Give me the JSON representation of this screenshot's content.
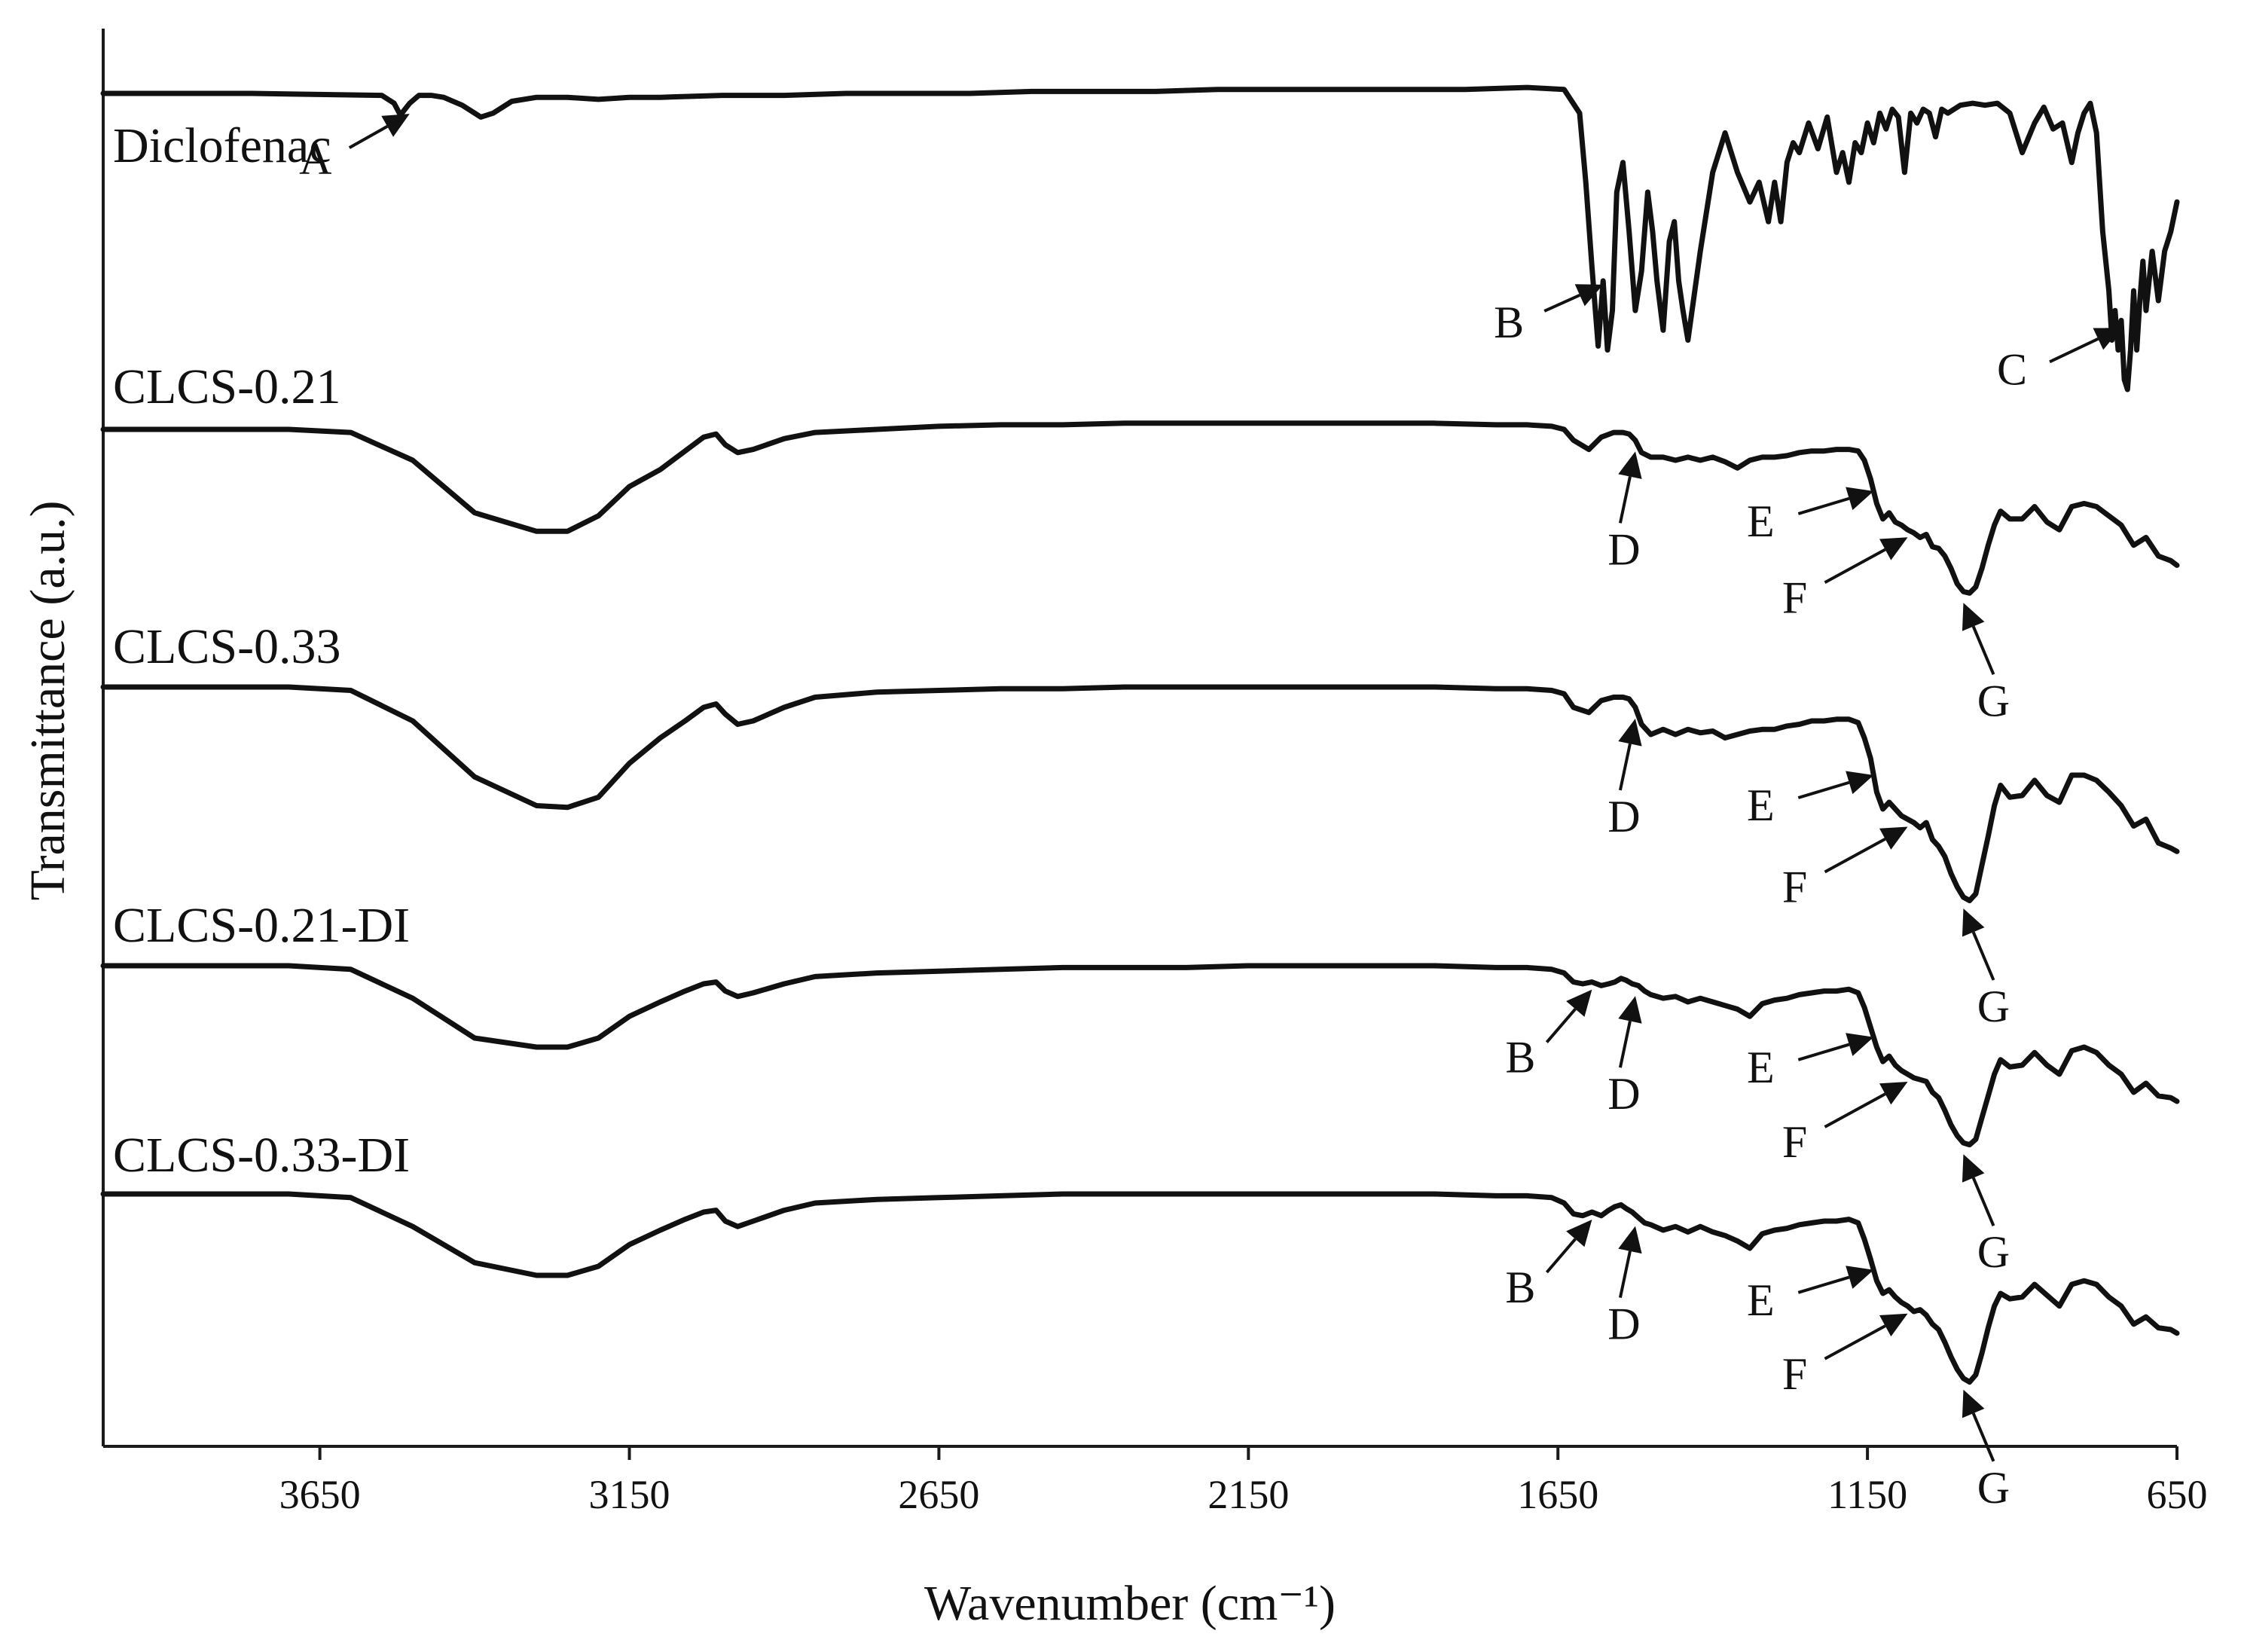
{
  "chart_data": {
    "type": "line",
    "xlabel": "Wavenumber (cm⁻¹)",
    "ylabel": "Transmittance (a.u.)",
    "xlim": [
      4000,
      650
    ],
    "x_reversed": true,
    "xticks": [
      3650,
      3150,
      2650,
      2150,
      1650,
      1150,
      650
    ],
    "y_ticks_shown": false,
    "legend": "labels above each trace",
    "series": [
      {
        "name": "Diclofenac",
        "x": [
          4000,
          3760,
          3550,
          3530,
          3520,
          3505,
          3490,
          3470,
          3450,
          3420,
          3390,
          3370,
          3340,
          3300,
          3250,
          3200,
          3150,
          3100,
          3000,
          2900,
          2800,
          2700,
          2600,
          2500,
          2400,
          2300,
          2200,
          2100,
          2000,
          1900,
          1800,
          1700,
          1640,
          1615,
          1605,
          1595,
          1585,
          1577,
          1570,
          1562,
          1555,
          1545,
          1535,
          1525,
          1515,
          1505,
          1497,
          1490,
          1480,
          1470,
          1462,
          1455,
          1448,
          1440,
          1420,
          1400,
          1380,
          1360,
          1340,
          1325,
          1310,
          1300,
          1290,
          1280,
          1270,
          1260,
          1245,
          1230,
          1215,
          1200,
          1190,
          1180,
          1170,
          1160,
          1150,
          1140,
          1130,
          1120,
          1110,
          1100,
          1090,
          1080,
          1070,
          1060,
          1050,
          1040,
          1030,
          1020,
          1000,
          980,
          960,
          940,
          920,
          900,
          880,
          865,
          850,
          835,
          820,
          810,
          800,
          790,
          780,
          770,
          760,
          755,
          750,
          745,
          740,
          735,
          730,
          725,
          720,
          715,
          710,
          705,
          700,
          695,
          690,
          680,
          670,
          660,
          650
        ],
        "y": [
          1.5,
          1.5,
          1.49,
          1.45,
          1.39,
          1.45,
          1.49,
          1.49,
          1.48,
          1.44,
          1.38,
          1.4,
          1.46,
          1.48,
          1.48,
          1.47,
          1.48,
          1.48,
          1.49,
          1.49,
          1.5,
          1.5,
          1.5,
          1.51,
          1.51,
          1.51,
          1.52,
          1.52,
          1.52,
          1.52,
          1.52,
          1.53,
          1.52,
          1.4,
          1.05,
          0.62,
          0.22,
          0.55,
          0.2,
          0.4,
          1.0,
          1.15,
          0.8,
          0.4,
          0.6,
          1.0,
          0.8,
          0.55,
          0.3,
          0.75,
          0.85,
          0.55,
          0.4,
          0.25,
          0.7,
          1.1,
          1.3,
          1.1,
          0.95,
          1.05,
          0.85,
          1.05,
          0.85,
          1.15,
          1.25,
          1.2,
          1.35,
          1.22,
          1.38,
          1.1,
          1.2,
          1.05,
          1.25,
          1.2,
          1.35,
          1.25,
          1.4,
          1.32,
          1.42,
          1.38,
          1.1,
          1.4,
          1.35,
          1.42,
          1.4,
          1.28,
          1.42,
          1.4,
          1.44,
          1.45,
          1.44,
          1.45,
          1.4,
          1.2,
          1.35,
          1.43,
          1.32,
          1.35,
          1.15,
          1.3,
          1.4,
          1.45,
          1.3,
          0.8,
          0.5,
          0.25,
          0.4,
          0.2,
          0.35,
          0.05,
          0.0,
          0.2,
          0.5,
          0.2,
          0.45,
          0.65,
          0.4,
          0.55,
          0.7,
          0.45,
          0.7,
          0.8,
          0.95
        ]
      },
      {
        "name": "CLCS-0.21",
        "x": [
          4000,
          3700,
          3600,
          3500,
          3400,
          3300,
          3250,
          3200,
          3150,
          3100,
          3060,
          3030,
          3010,
          2995,
          2975,
          2950,
          2900,
          2850,
          2750,
          2650,
          2550,
          2450,
          2350,
          2250,
          2150,
          2050,
          1950,
          1850,
          1750,
          1700,
          1660,
          1640,
          1625,
          1600,
          1580,
          1560,
          1545,
          1535,
          1525,
          1515,
          1500,
          1480,
          1460,
          1440,
          1420,
          1400,
          1380,
          1360,
          1340,
          1320,
          1300,
          1280,
          1260,
          1240,
          1220,
          1200,
          1180,
          1165,
          1155,
          1145,
          1135,
          1125,
          1115,
          1105,
          1095,
          1085,
          1075,
          1065,
          1055,
          1045,
          1035,
          1025,
          1015,
          1005,
          995,
          985,
          975,
          965,
          955,
          945,
          935,
          920,
          900,
          880,
          860,
          840,
          820,
          800,
          780,
          760,
          740,
          720,
          700,
          680,
          660,
          650
        ],
        "y": [
          1.0,
          1.0,
          0.98,
          0.8,
          0.46,
          0.34,
          0.34,
          0.44,
          0.63,
          0.74,
          0.86,
          0.95,
          0.97,
          0.9,
          0.85,
          0.87,
          0.94,
          0.98,
          1.0,
          1.02,
          1.03,
          1.03,
          1.04,
          1.04,
          1.04,
          1.04,
          1.04,
          1.04,
          1.03,
          1.03,
          1.02,
          1.0,
          0.93,
          0.87,
          0.95,
          0.98,
          0.98,
          0.97,
          0.93,
          0.85,
          0.82,
          0.82,
          0.8,
          0.82,
          0.8,
          0.82,
          0.79,
          0.75,
          0.8,
          0.82,
          0.82,
          0.83,
          0.85,
          0.86,
          0.86,
          0.87,
          0.87,
          0.86,
          0.8,
          0.68,
          0.52,
          0.42,
          0.46,
          0.4,
          0.38,
          0.35,
          0.33,
          0.3,
          0.32,
          0.24,
          0.23,
          0.18,
          0.1,
          0.0,
          -0.05,
          -0.06,
          -0.02,
          0.1,
          0.25,
          0.38,
          0.47,
          0.42,
          0.42,
          0.5,
          0.4,
          0.35,
          0.5,
          0.52,
          0.5,
          0.44,
          0.38,
          0.25,
          0.3,
          0.18,
          0.15,
          0.12
        ]
      },
      {
        "name": "CLCS-0.33",
        "x": [
          4000,
          3700,
          3600,
          3500,
          3400,
          3300,
          3250,
          3200,
          3150,
          3100,
          3060,
          3030,
          3010,
          2995,
          2975,
          2950,
          2900,
          2850,
          2750,
          2650,
          2550,
          2450,
          2350,
          2250,
          2150,
          2050,
          1950,
          1850,
          1750,
          1700,
          1660,
          1640,
          1625,
          1600,
          1580,
          1560,
          1545,
          1535,
          1525,
          1515,
          1500,
          1480,
          1460,
          1440,
          1420,
          1400,
          1380,
          1360,
          1340,
          1320,
          1300,
          1280,
          1260,
          1240,
          1220,
          1200,
          1180,
          1165,
          1155,
          1145,
          1135,
          1125,
          1115,
          1105,
          1095,
          1085,
          1075,
          1065,
          1055,
          1045,
          1035,
          1025,
          1015,
          1005,
          995,
          985,
          975,
          965,
          955,
          945,
          935,
          920,
          900,
          880,
          860,
          840,
          820,
          800,
          780,
          760,
          740,
          720,
          700,
          680,
          660,
          650
        ],
        "y": [
          1.0,
          1.0,
          0.98,
          0.8,
          0.47,
          0.3,
          0.29,
          0.35,
          0.55,
          0.7,
          0.8,
          0.88,
          0.9,
          0.84,
          0.78,
          0.8,
          0.88,
          0.94,
          0.97,
          0.98,
          0.99,
          0.99,
          1.0,
          1.0,
          1.0,
          1.0,
          1.0,
          1.0,
          0.99,
          0.99,
          0.98,
          0.96,
          0.88,
          0.85,
          0.92,
          0.94,
          0.94,
          0.93,
          0.88,
          0.78,
          0.72,
          0.75,
          0.72,
          0.75,
          0.73,
          0.74,
          0.7,
          0.72,
          0.74,
          0.75,
          0.75,
          0.77,
          0.78,
          0.8,
          0.8,
          0.81,
          0.81,
          0.79,
          0.7,
          0.58,
          0.38,
          0.28,
          0.32,
          0.28,
          0.24,
          0.22,
          0.2,
          0.17,
          0.2,
          0.1,
          0.06,
          0.0,
          -0.1,
          -0.18,
          -0.24,
          -0.26,
          -0.22,
          -0.05,
          0.12,
          0.3,
          0.42,
          0.35,
          0.36,
          0.45,
          0.36,
          0.32,
          0.48,
          0.48,
          0.45,
          0.38,
          0.3,
          0.18,
          0.22,
          0.08,
          0.05,
          0.03
        ]
      },
      {
        "name": "CLCS-0.21-DI",
        "x": [
          4000,
          3700,
          3600,
          3500,
          3400,
          3300,
          3250,
          3200,
          3150,
          3100,
          3060,
          3030,
          3010,
          2995,
          2975,
          2950,
          2900,
          2850,
          2750,
          2650,
          2550,
          2450,
          2350,
          2250,
          2150,
          2050,
          1950,
          1850,
          1750,
          1700,
          1660,
          1640,
          1625,
          1610,
          1595,
          1580,
          1568,
          1558,
          1548,
          1540,
          1530,
          1520,
          1510,
          1500,
          1480,
          1460,
          1440,
          1420,
          1400,
          1380,
          1360,
          1340,
          1320,
          1300,
          1280,
          1260,
          1240,
          1220,
          1200,
          1180,
          1165,
          1155,
          1145,
          1135,
          1125,
          1115,
          1105,
          1095,
          1085,
          1075,
          1065,
          1055,
          1045,
          1035,
          1025,
          1015,
          1005,
          995,
          985,
          975,
          965,
          955,
          945,
          935,
          920,
          900,
          880,
          860,
          840,
          820,
          800,
          780,
          760,
          740,
          720,
          700,
          680,
          660,
          650
        ],
        "y": [
          1.0,
          1.0,
          0.98,
          0.82,
          0.6,
          0.55,
          0.55,
          0.6,
          0.72,
          0.8,
          0.86,
          0.9,
          0.91,
          0.86,
          0.83,
          0.85,
          0.9,
          0.94,
          0.96,
          0.97,
          0.98,
          0.99,
          0.99,
          0.99,
          1.0,
          1.0,
          1.0,
          1.0,
          0.99,
          0.99,
          0.98,
          0.96,
          0.91,
          0.9,
          0.91,
          0.89,
          0.9,
          0.91,
          0.93,
          0.92,
          0.9,
          0.89,
          0.86,
          0.84,
          0.82,
          0.83,
          0.8,
          0.82,
          0.8,
          0.78,
          0.76,
          0.72,
          0.79,
          0.81,
          0.82,
          0.84,
          0.85,
          0.86,
          0.86,
          0.87,
          0.85,
          0.77,
          0.66,
          0.55,
          0.47,
          0.5,
          0.45,
          0.42,
          0.4,
          0.38,
          0.37,
          0.36,
          0.3,
          0.27,
          0.2,
          0.12,
          0.06,
          0.02,
          0.01,
          0.04,
          0.16,
          0.28,
          0.4,
          0.48,
          0.44,
          0.45,
          0.52,
          0.45,
          0.4,
          0.53,
          0.55,
          0.52,
          0.45,
          0.4,
          0.3,
          0.35,
          0.28,
          0.27,
          0.25
        ]
      },
      {
        "name": "CLCS-0.33-DI",
        "x": [
          4000,
          3700,
          3600,
          3500,
          3400,
          3300,
          3250,
          3200,
          3150,
          3100,
          3060,
          3030,
          3010,
          2995,
          2975,
          2950,
          2900,
          2850,
          2750,
          2650,
          2550,
          2450,
          2350,
          2250,
          2150,
          2050,
          1950,
          1850,
          1750,
          1700,
          1660,
          1640,
          1625,
          1610,
          1595,
          1580,
          1568,
          1558,
          1548,
          1540,
          1530,
          1520,
          1510,
          1500,
          1480,
          1460,
          1440,
          1420,
          1400,
          1380,
          1360,
          1340,
          1320,
          1300,
          1280,
          1260,
          1240,
          1220,
          1200,
          1180,
          1165,
          1155,
          1145,
          1135,
          1125,
          1115,
          1105,
          1095,
          1085,
          1075,
          1065,
          1055,
          1045,
          1035,
          1025,
          1015,
          1005,
          995,
          985,
          975,
          965,
          955,
          945,
          935,
          920,
          900,
          880,
          860,
          840,
          820,
          800,
          780,
          760,
          740,
          720,
          700,
          680,
          660,
          650
        ],
        "y": [
          1.0,
          1.0,
          0.98,
          0.82,
          0.62,
          0.55,
          0.55,
          0.6,
          0.72,
          0.8,
          0.86,
          0.9,
          0.91,
          0.85,
          0.82,
          0.85,
          0.91,
          0.95,
          0.97,
          0.98,
          0.99,
          1.0,
          1.0,
          1.0,
          1.0,
          1.0,
          1.0,
          1.0,
          0.99,
          0.99,
          0.98,
          0.95,
          0.89,
          0.88,
          0.9,
          0.88,
          0.91,
          0.93,
          0.94,
          0.92,
          0.9,
          0.87,
          0.84,
          0.83,
          0.8,
          0.82,
          0.79,
          0.82,
          0.79,
          0.77,
          0.74,
          0.7,
          0.78,
          0.8,
          0.81,
          0.83,
          0.84,
          0.85,
          0.85,
          0.86,
          0.84,
          0.75,
          0.64,
          0.52,
          0.45,
          0.47,
          0.43,
          0.4,
          0.38,
          0.35,
          0.36,
          0.33,
          0.28,
          0.25,
          0.18,
          0.1,
          0.03,
          -0.02,
          -0.04,
          0.0,
          0.12,
          0.26,
          0.38,
          0.45,
          0.42,
          0.43,
          0.5,
          0.44,
          0.38,
          0.5,
          0.52,
          0.5,
          0.43,
          0.38,
          0.28,
          0.32,
          0.26,
          0.25,
          0.23
        ]
      }
    ],
    "annotations": [
      {
        "series": "Diclofenac",
        "label": "A",
        "x": 3505
      },
      {
        "series": "Diclofenac",
        "label": "B",
        "x": 1577
      },
      {
        "series": "Diclofenac",
        "label": "C",
        "x": 740
      },
      {
        "series": "CLCS-0.21",
        "label": "D",
        "x": 1525
      },
      {
        "series": "CLCS-0.21",
        "label": "E",
        "x": 1140
      },
      {
        "series": "CLCS-0.21",
        "label": "F",
        "x": 1085
      },
      {
        "series": "CLCS-0.21",
        "label": "G",
        "x": 995
      },
      {
        "series": "CLCS-0.33",
        "label": "D",
        "x": 1525
      },
      {
        "series": "CLCS-0.33",
        "label": "E",
        "x": 1140
      },
      {
        "series": "CLCS-0.33",
        "label": "F",
        "x": 1085
      },
      {
        "series": "CLCS-0.33",
        "label": "G",
        "x": 995
      },
      {
        "series": "CLCS-0.21-DI",
        "label": "B",
        "x": 1595
      },
      {
        "series": "CLCS-0.21-DI",
        "label": "D",
        "x": 1525
      },
      {
        "series": "CLCS-0.21-DI",
        "label": "E",
        "x": 1140
      },
      {
        "series": "CLCS-0.21-DI",
        "label": "F",
        "x": 1085
      },
      {
        "series": "CLCS-0.21-DI",
        "label": "G",
        "x": 995
      },
      {
        "series": "CLCS-0.33-DI",
        "label": "B",
        "x": 1595
      },
      {
        "series": "CLCS-0.33-DI",
        "label": "D",
        "x": 1525
      },
      {
        "series": "CLCS-0.33-DI",
        "label": "E",
        "x": 1140
      },
      {
        "series": "CLCS-0.33-DI",
        "label": "F",
        "x": 1085
      },
      {
        "series": "CLCS-0.33-DI",
        "label": "G",
        "x": 995
      }
    ]
  }
}
